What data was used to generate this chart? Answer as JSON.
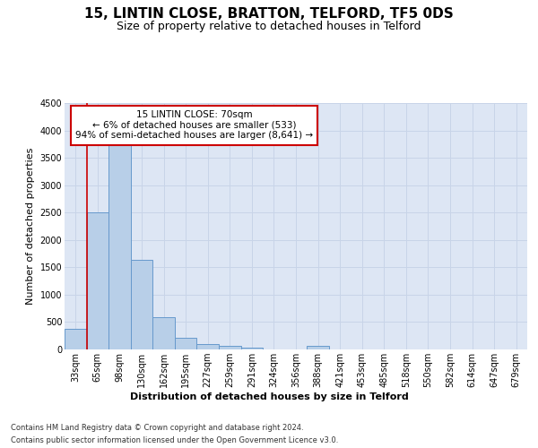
{
  "title": "15, LINTIN CLOSE, BRATTON, TELFORD, TF5 0DS",
  "subtitle": "Size of property relative to detached houses in Telford",
  "xlabel": "Distribution of detached houses by size in Telford",
  "ylabel": "Number of detached properties",
  "footer_line1": "Contains HM Land Registry data © Crown copyright and database right 2024.",
  "footer_line2": "Contains public sector information licensed under the Open Government Licence v3.0.",
  "bin_labels": [
    "33sqm",
    "65sqm",
    "98sqm",
    "130sqm",
    "162sqm",
    "195sqm",
    "227sqm",
    "259sqm",
    "291sqm",
    "324sqm",
    "356sqm",
    "388sqm",
    "421sqm",
    "453sqm",
    "485sqm",
    "518sqm",
    "550sqm",
    "582sqm",
    "614sqm",
    "647sqm",
    "679sqm"
  ],
  "bar_values": [
    370,
    2500,
    3750,
    1640,
    590,
    220,
    105,
    60,
    40,
    0,
    0,
    60,
    0,
    0,
    0,
    0,
    0,
    0,
    0,
    0,
    0
  ],
  "bar_color": "#b8cfe8",
  "bar_edge_color": "#6699cc",
  "ylim": [
    0,
    4500
  ],
  "yticks": [
    0,
    500,
    1000,
    1500,
    2000,
    2500,
    3000,
    3500,
    4000,
    4500
  ],
  "red_line_color": "#cc0000",
  "annotation_text": "15 LINTIN CLOSE: 70sqm\n← 6% of detached houses are smaller (533)\n94% of semi-detached houses are larger (8,641) →",
  "annotation_box_color": "#ffffff",
  "annotation_box_edge": "#cc0000",
  "grid_color": "#c8d4e8",
  "bg_color": "#dde6f4",
  "title_fontsize": 11,
  "subtitle_fontsize": 9,
  "ylabel_fontsize": 8,
  "xlabel_fontsize": 8,
  "tick_fontsize": 7,
  "annot_fontsize": 7.5,
  "footer_fontsize": 6
}
